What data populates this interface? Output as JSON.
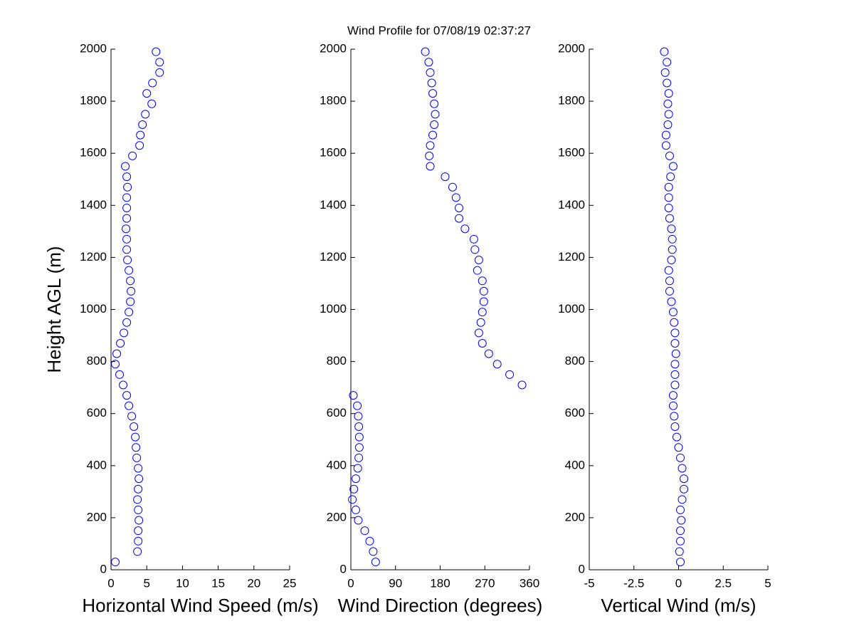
{
  "chart_data": [
    {
      "type": "scatter",
      "xlabel": "Horizontal Wind Speed (m/s)",
      "ylabel": "Height AGL (m)",
      "color": "#0000ff",
      "xlim": [
        0,
        25
      ],
      "xticks": [
        0,
        5,
        10,
        15,
        20,
        25
      ],
      "ylim": [
        0,
        2000
      ],
      "yticks": [
        0,
        200,
        400,
        600,
        800,
        1000,
        1200,
        1400,
        1600,
        1800,
        2000
      ],
      "x": [
        0.6,
        3.7,
        3.8,
        3.8,
        3.9,
        3.8,
        3.7,
        3.8,
        3.9,
        3.8,
        3.6,
        3.5,
        3.4,
        3.2,
        2.9,
        2.5,
        2.2,
        1.7,
        1.2,
        0.6,
        0.8,
        1.3,
        1.8,
        2.2,
        2.5,
        2.7,
        2.8,
        2.7,
        2.5,
        2.3,
        2.2,
        2.2,
        2.1,
        2.2,
        2.2,
        2.2,
        2.3,
        2.2,
        2.0,
        3.0,
        4.0,
        4.1,
        4.4,
        4.8,
        5.7,
        5.0,
        5.8,
        6.8,
        6.8,
        6.3
      ],
      "y": [
        30,
        70,
        110,
        150,
        190,
        230,
        270,
        310,
        350,
        390,
        430,
        470,
        510,
        550,
        590,
        630,
        670,
        710,
        750,
        790,
        830,
        870,
        910,
        950,
        990,
        1030,
        1070,
        1110,
        1150,
        1190,
        1230,
        1270,
        1310,
        1350,
        1390,
        1430,
        1470,
        1510,
        1550,
        1590,
        1630,
        1670,
        1710,
        1750,
        1790,
        1830,
        1870,
        1910,
        1950,
        1990
      ]
    },
    {
      "type": "scatter",
      "title": "Wind Profile for  07/08/19 02:37:27",
      "xlabel": "Wind Direction (degrees)",
      "color": "#0000ff",
      "xlim": [
        0,
        360
      ],
      "xticks": [
        0,
        90,
        180,
        270,
        360
      ],
      "ylim": [
        0,
        2000
      ],
      "yticks": [
        0,
        200,
        400,
        600,
        800,
        1000,
        1200,
        1400,
        1600,
        1800,
        2000
      ],
      "x": [
        50,
        45,
        38,
        28,
        15,
        10,
        3,
        6,
        10,
        14,
        16,
        17,
        17,
        16,
        15,
        13,
        5,
        345,
        320,
        295,
        278,
        265,
        258,
        262,
        265,
        268,
        268,
        265,
        255,
        258,
        250,
        248,
        230,
        218,
        218,
        212,
        205,
        190,
        160,
        158,
        160,
        165,
        168,
        170,
        168,
        165,
        163,
        160,
        157,
        150
      ],
      "y": [
        30,
        70,
        110,
        150,
        190,
        230,
        270,
        310,
        350,
        390,
        430,
        470,
        510,
        550,
        590,
        630,
        670,
        710,
        750,
        790,
        830,
        870,
        910,
        950,
        990,
        1030,
        1070,
        1110,
        1150,
        1190,
        1230,
        1270,
        1310,
        1350,
        1390,
        1430,
        1470,
        1510,
        1550,
        1590,
        1630,
        1670,
        1710,
        1750,
        1790,
        1830,
        1870,
        1910,
        1950,
        1990
      ]
    },
    {
      "type": "scatter",
      "xlabel": "Vertical Wind (m/s)",
      "color": "#0000ff",
      "xlim": [
        -5,
        5
      ],
      "xticks": [
        -5,
        -2.5,
        0,
        2.5,
        5
      ],
      "ylim": [
        0,
        2000
      ],
      "yticks": [
        0,
        200,
        400,
        600,
        800,
        1000,
        1200,
        1400,
        1600,
        1800,
        2000
      ],
      "x": [
        0.1,
        0.05,
        0.1,
        0.1,
        0.15,
        0.1,
        0.2,
        0.3,
        0.3,
        0.2,
        0.1,
        0.0,
        -0.1,
        -0.2,
        -0.25,
        -0.3,
        -0.3,
        -0.2,
        -0.2,
        -0.2,
        -0.15,
        -0.2,
        -0.2,
        -0.25,
        -0.3,
        -0.4,
        -0.5,
        -0.5,
        -0.55,
        -0.4,
        -0.35,
        -0.35,
        -0.4,
        -0.5,
        -0.55,
        -0.55,
        -0.55,
        -0.45,
        -0.3,
        -0.5,
        -0.7,
        -0.7,
        -0.6,
        -0.55,
        -0.6,
        -0.55,
        -0.65,
        -0.75,
        -0.65,
        -0.8
      ],
      "y": [
        30,
        70,
        110,
        150,
        190,
        230,
        270,
        310,
        350,
        390,
        430,
        470,
        510,
        550,
        590,
        630,
        670,
        710,
        750,
        790,
        830,
        870,
        910,
        950,
        990,
        1030,
        1070,
        1110,
        1150,
        1190,
        1230,
        1270,
        1310,
        1350,
        1390,
        1430,
        1470,
        1510,
        1550,
        1590,
        1630,
        1670,
        1710,
        1750,
        1790,
        1830,
        1870,
        1910,
        1950,
        1990
      ]
    }
  ]
}
